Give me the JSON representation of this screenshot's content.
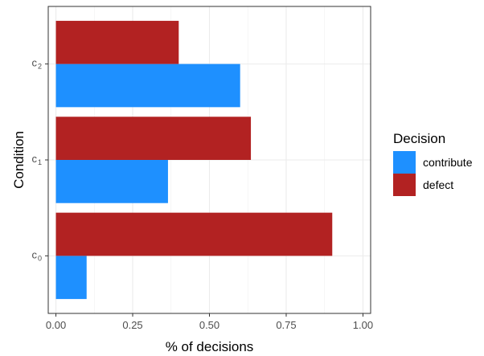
{
  "chart_data": {
    "type": "bar",
    "orientation": "horizontal",
    "xlabel": "% of decisions",
    "ylabel": "Condition",
    "xlim": [
      -0.025,
      1.025
    ],
    "xticks": [
      0,
      0.25,
      0.5,
      0.75,
      1.0
    ],
    "xtick_labels": [
      "0.00",
      "0.25",
      "0.50",
      "0.75",
      "1.00"
    ],
    "categories": [
      {
        "main": "c",
        "sub": "0"
      },
      {
        "main": "c",
        "sub": "1"
      },
      {
        "main": "c",
        "sub": "2"
      }
    ],
    "series": [
      {
        "name": "contribute",
        "color": "#1E90FF",
        "values": [
          0.1,
          0.365,
          0.6
        ]
      },
      {
        "name": "defect",
        "color": "#B22222",
        "values": [
          0.9,
          0.635,
          0.4
        ]
      }
    ],
    "legend": {
      "title": "Decision",
      "position": "right"
    },
    "grid": true,
    "theme": "bw"
  }
}
